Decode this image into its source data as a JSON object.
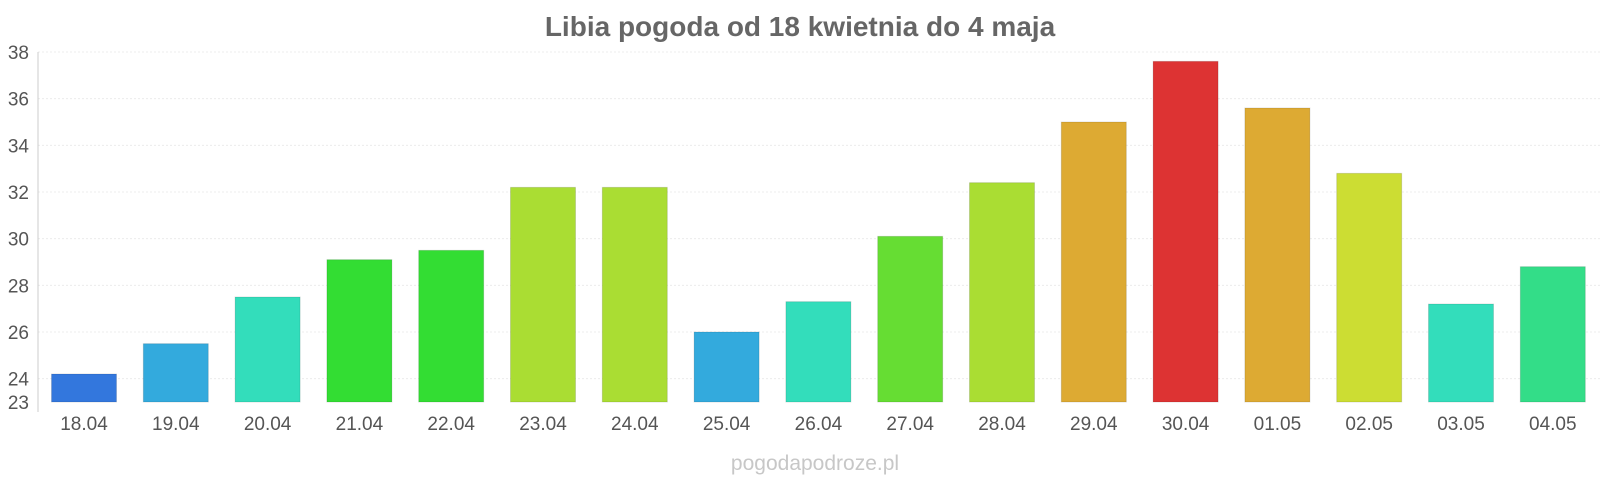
{
  "chart_data": {
    "type": "bar",
    "title": "Libia pogoda od 18 kwietnia do 4 maja",
    "xlabel": "",
    "ylabel": "",
    "categories": [
      "18.04",
      "19.04",
      "20.04",
      "21.04",
      "22.04",
      "23.04",
      "24.04",
      "25.04",
      "26.04",
      "27.04",
      "28.04",
      "29.04",
      "30.04",
      "01.05",
      "02.05",
      "03.05",
      "04.05"
    ],
    "values": [
      24.2,
      25.5,
      27.5,
      29.1,
      29.5,
      32.2,
      32.2,
      26.0,
      27.3,
      30.1,
      32.4,
      35.0,
      37.6,
      35.6,
      32.8,
      27.2,
      28.8
    ],
    "bar_colors": [
      "#3377dd",
      "#33aadd",
      "#33ddbb",
      "#33dd33",
      "#33dd33",
      "#aadd33",
      "#aadd33",
      "#33aadd",
      "#33ddbb",
      "#66dd33",
      "#aadd33",
      "#ddaa33",
      "#dd3333",
      "#ddaa33",
      "#ccdd33",
      "#33ddbb",
      "#33dd88"
    ],
    "ylim": [
      23,
      38
    ],
    "yticks": [
      23,
      24,
      26,
      28,
      30,
      32,
      34,
      36,
      38
    ],
    "grid": true,
    "legend": "none"
  },
  "footer": {
    "watermark": "pogodapodroze.pl"
  }
}
